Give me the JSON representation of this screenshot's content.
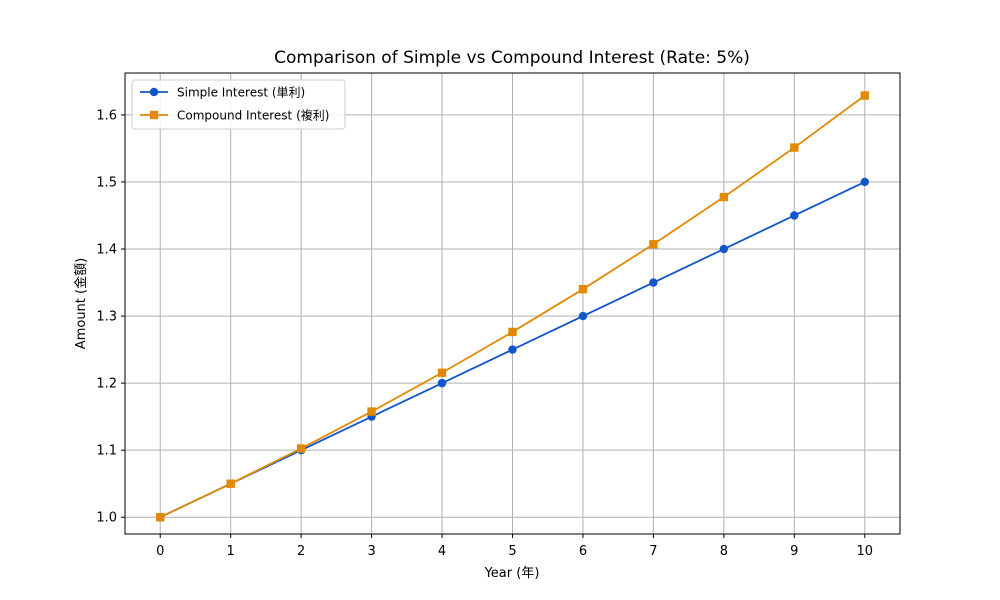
{
  "chart_data": {
    "type": "line",
    "title": "Comparison of Simple vs Compound Interest (Rate: 5%)",
    "xlabel": "Year (年)",
    "ylabel": "Amount (金額)",
    "x": [
      0,
      1,
      2,
      3,
      4,
      5,
      6,
      7,
      8,
      9,
      10
    ],
    "xlim": [
      -0.5,
      10.5
    ],
    "ylim": [
      0.975,
      1.6625
    ],
    "x_ticks": [
      "0",
      "1",
      "2",
      "3",
      "4",
      "5",
      "6",
      "7",
      "8",
      "9",
      "10"
    ],
    "y_ticks": [
      "1.0",
      "1.1",
      "1.2",
      "1.3",
      "1.4",
      "1.5",
      "1.6"
    ],
    "y_tick_values": [
      1.0,
      1.1,
      1.2,
      1.3,
      1.4,
      1.5,
      1.6
    ],
    "grid": true,
    "legend_position": "top-left",
    "series": [
      {
        "name": "Simple Interest (単利)",
        "color": "#1155cc",
        "marker": "circle",
        "values": [
          1.0,
          1.05,
          1.1,
          1.15,
          1.2,
          1.25,
          1.3,
          1.35,
          1.4,
          1.45,
          1.5
        ]
      },
      {
        "name": "Compound Interest (複利)",
        "color": "#e08a00",
        "marker": "square",
        "values": [
          1.0,
          1.05,
          1.1025,
          1.1576,
          1.2155,
          1.2763,
          1.3401,
          1.4071,
          1.4775,
          1.5513,
          1.6289
        ]
      }
    ]
  }
}
